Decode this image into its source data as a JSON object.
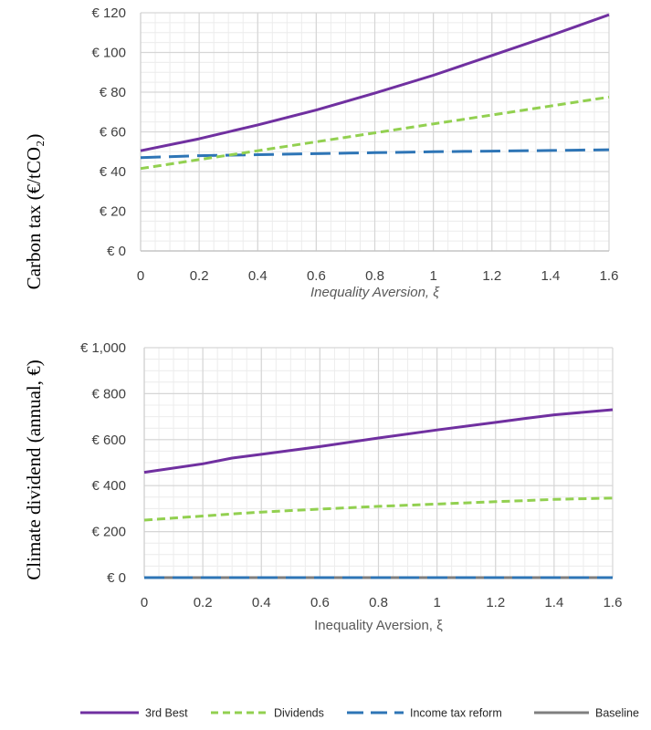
{
  "chart_data": [
    {
      "type": "line",
      "xlabel": "Inequality Aversion, ξ",
      "xlabel_style": "italic",
      "ylabel": "Carbon tax (€/tCO₂)",
      "xlim": [
        0,
        1.6
      ],
      "ylim": [
        0,
        120
      ],
      "x_ticks": [
        "0",
        "0.2",
        "0.4",
        "0.6",
        "0.8",
        "1",
        "1.2",
        "1.4",
        "1.6"
      ],
      "y_ticks": [
        "€ 0",
        "€ 20",
        "€ 40",
        "€ 60",
        "€ 80",
        "€ 100",
        "€ 120"
      ],
      "grid": true,
      "x": [
        0,
        0.2,
        0.4,
        0.6,
        0.8,
        1.0,
        1.2,
        1.4,
        1.6
      ],
      "series": [
        {
          "name": "3rd Best",
          "values": [
            50.5,
            56.5,
            63.5,
            71,
            79.5,
            88.5,
            98.5,
            108.5,
            119
          ],
          "color": "#7030A0",
          "dash": "solid"
        },
        {
          "name": "Dividends",
          "values": [
            41.5,
            46,
            50.5,
            55,
            59.5,
            64,
            68.5,
            73,
            77.5
          ],
          "color": "#92D050",
          "dash": "short"
        },
        {
          "name": "Income tax reform",
          "values": [
            47,
            48,
            48.5,
            49,
            49.5,
            50,
            50.3,
            50.6,
            51
          ],
          "color": "#2E75B6",
          "dash": "long"
        }
      ]
    },
    {
      "type": "line",
      "xlabel": "Inequality Aversion, ξ",
      "ylabel": "Climate dividend (annual, €)",
      "xlim": [
        0,
        1.6
      ],
      "ylim": [
        0,
        1000
      ],
      "x_ticks": [
        "0",
        "0.2",
        "0.4",
        "0.6",
        "0.8",
        "1",
        "1.2",
        "1.4",
        "1.6"
      ],
      "y_ticks": [
        "€ 0",
        "€ 200",
        "€ 400",
        "€ 600",
        "€ 800",
        "€ 1,000"
      ],
      "grid": true,
      "x": [
        0,
        0.2,
        0.3,
        0.4,
        0.6,
        0.8,
        1.0,
        1.2,
        1.3,
        1.4,
        1.6
      ],
      "series": [
        {
          "name": "3rd Best",
          "values": [
            458,
            495,
            520,
            536,
            570,
            607,
            642,
            675,
            692,
            708,
            730
          ],
          "color": "#7030A0",
          "dash": "solid"
        },
        {
          "name": "Dividends",
          "values": [
            250,
            268,
            277,
            285,
            298,
            310,
            320,
            330,
            335,
            340,
            346
          ],
          "color": "#92D050",
          "dash": "short"
        },
        {
          "name": "Income tax reform",
          "values": [
            0,
            0,
            0,
            0,
            0,
            0,
            0,
            0,
            0,
            0,
            0
          ],
          "color": "#2E75B6",
          "dash": "long"
        },
        {
          "name": "Baseline",
          "values": [
            0,
            0,
            0,
            0,
            0,
            0,
            0,
            0,
            0,
            0,
            0
          ],
          "color": "#7F7F7F",
          "dash": "solid"
        }
      ]
    }
  ],
  "legend": {
    "placement": "bottom",
    "items": [
      {
        "label": "3rd Best",
        "color": "#7030A0",
        "dash": "solid"
      },
      {
        "label": "Dividends",
        "color": "#92D050",
        "dash": "short"
      },
      {
        "label": "Income tax reform",
        "color": "#2E75B6",
        "dash": "long"
      },
      {
        "label": "Baseline",
        "color": "#7F7F7F",
        "dash": "solid"
      }
    ]
  }
}
